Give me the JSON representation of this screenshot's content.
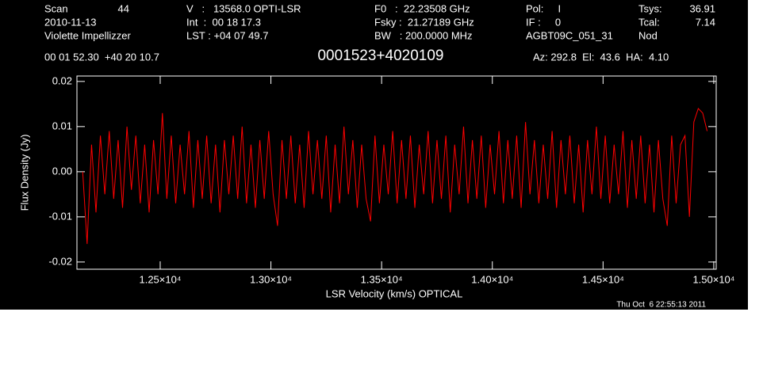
{
  "header": {
    "items": [
      "Scan",
      "44",
      "2010-11-13",
      "Violette Impellizzer",
      "V   :   13568.0 OPTI-LSR",
      "Int  :  00 18 17.3",
      "LST : +04 07 49.7",
      "F0   :  22.23508 GHz",
      "Fsky :  21.27189 GHz",
      "BW   : 200.0000 MHz",
      "Pol:     I",
      "IF :     0",
      "AGBT09C_051_31",
      "Tsys:",
      "36.91",
      "Tcal:",
      "7.14",
      "Nod",
      "00 01 52.30  +40 20 10.7",
      "Az: 292.8  El:  43.6  HA:  4.10"
    ]
  },
  "footer": "Thu Oct  6 22:55:13 2011",
  "chart_data": {
    "type": "line",
    "title": "0001523+4020109",
    "x_label": "LSR Velocity (km/s) OPTICAL",
    "y_label": "Flux Density (Jy)",
    "xlim": [
      12124,
      15011
    ],
    "ylim": [
      -0.0216,
      0.0212
    ],
    "xticks": [
      {
        "value": 12500,
        "label": "1.25×10⁴"
      },
      {
        "value": 13000,
        "label": "1.30×10⁴"
      },
      {
        "value": 13500,
        "label": "1.35×10⁴"
      },
      {
        "value": 14000,
        "label": "1.40×10⁴"
      },
      {
        "value": 14500,
        "label": "1.45×10⁴"
      },
      {
        "value": 15000,
        "label": "1.50×10⁴"
      }
    ],
    "yticks": [
      0.02,
      0.01,
      {
        "value": 0,
        "label": "0.00"
      },
      -0.01,
      -0.02
    ],
    "x": [
      12150,
      12170,
      12190,
      12210,
      12230,
      12250,
      12270,
      12290,
      12310,
      12330,
      12350,
      12370,
      12390,
      12410,
      12430,
      12450,
      12470,
      12490,
      12510,
      12530,
      12550,
      12570,
      12590,
      12610,
      12630,
      12650,
      12670,
      12690,
      12710,
      12730,
      12750,
      12770,
      12790,
      12810,
      12830,
      12850,
      12870,
      12890,
      12910,
      12930,
      12950,
      12970,
      12990,
      13010,
      13030,
      13050,
      13070,
      13090,
      13110,
      13130,
      13150,
      13170,
      13190,
      13210,
      13230,
      13250,
      13270,
      13290,
      13310,
      13330,
      13350,
      13370,
      13390,
      13410,
      13430,
      13450,
      13470,
      13490,
      13510,
      13530,
      13550,
      13570,
      13590,
      13610,
      13630,
      13650,
      13670,
      13690,
      13710,
      13730,
      13750,
      13770,
      13790,
      13810,
      13830,
      13850,
      13870,
      13890,
      13910,
      13930,
      13950,
      13970,
      13990,
      14010,
      14030,
      14050,
      14070,
      14090,
      14110,
      14130,
      14150,
      14170,
      14190,
      14210,
      14230,
      14250,
      14270,
      14290,
      14310,
      14330,
      14350,
      14370,
      14390,
      14410,
      14430,
      14450,
      14470,
      14490,
      14510,
      14530,
      14550,
      14570,
      14590,
      14610,
      14630,
      14650,
      14670,
      14690,
      14710,
      14730,
      14750,
      14770,
      14790,
      14810,
      14830,
      14850,
      14870,
      14890,
      14910,
      14930,
      14950,
      14970
    ],
    "series": [
      {
        "name": "spectrum",
        "color": "#ff0000",
        "values": [
          0.0,
          -0.016,
          0.006,
          -0.009,
          0.008,
          -0.005,
          0.009,
          -0.006,
          0.007,
          -0.008,
          0.01,
          -0.004,
          0.008,
          -0.007,
          0.006,
          -0.009,
          0.007,
          -0.005,
          0.013,
          -0.006,
          0.008,
          -0.007,
          0.006,
          -0.005,
          0.009,
          -0.008,
          0.007,
          -0.006,
          0.008,
          -0.007,
          0.006,
          -0.009,
          0.007,
          -0.005,
          0.008,
          -0.006,
          0.01,
          -0.007,
          0.006,
          -0.008,
          0.007,
          -0.006,
          0.009,
          -0.005,
          -0.012,
          0.007,
          -0.006,
          0.008,
          -0.007,
          0.006,
          -0.008,
          0.009,
          -0.005,
          0.007,
          -0.006,
          0.008,
          -0.009,
          0.006,
          -0.007,
          0.01,
          -0.005,
          0.007,
          -0.008,
          0.006,
          -0.006,
          -0.011,
          0.008,
          -0.007,
          0.006,
          -0.005,
          0.009,
          -0.007,
          0.007,
          -0.006,
          0.008,
          -0.008,
          0.006,
          -0.005,
          0.009,
          -0.007,
          0.007,
          -0.006,
          0.008,
          -0.009,
          0.006,
          -0.005,
          0.01,
          -0.007,
          0.007,
          -0.006,
          0.008,
          -0.008,
          0.006,
          -0.005,
          0.009,
          -0.007,
          0.007,
          -0.006,
          0.008,
          -0.008,
          0.011,
          -0.005,
          0.007,
          -0.007,
          0.006,
          -0.006,
          0.009,
          -0.008,
          0.007,
          -0.005,
          0.008,
          -0.007,
          0.006,
          -0.009,
          0.007,
          -0.005,
          0.01,
          -0.006,
          0.008,
          -0.007,
          0.006,
          -0.005,
          0.009,
          -0.008,
          0.007,
          -0.006,
          0.008,
          -0.007,
          0.006,
          -0.009,
          0.007,
          -0.006,
          -0.012,
          0.008,
          -0.007,
          0.006,
          0.008,
          -0.01,
          0.011,
          0.014,
          0.013,
          0.009
        ]
      }
    ]
  }
}
